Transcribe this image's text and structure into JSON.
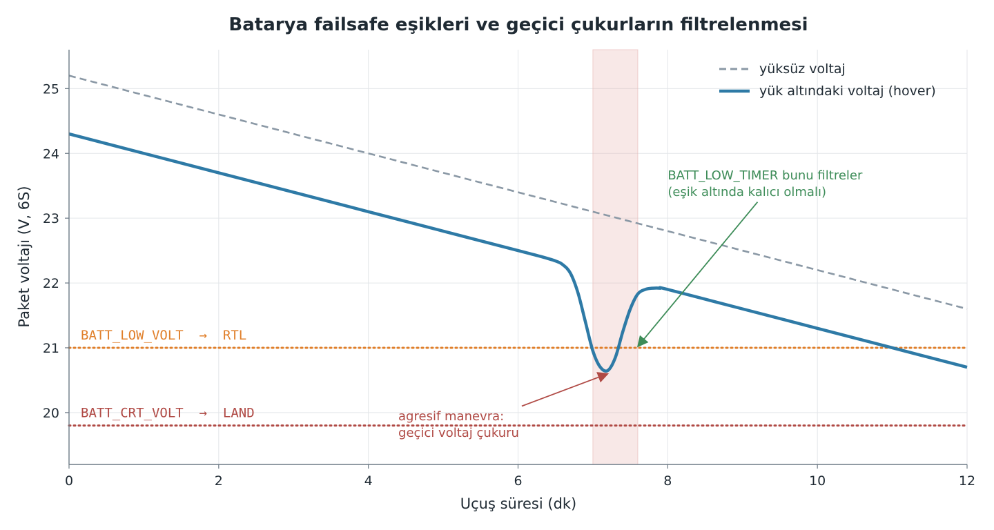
{
  "chart_data": {
    "type": "line",
    "title": "Batarya failsafe eşikleri ve geçici çukurların filtrelenmesi",
    "xlabel": "Uçuş süresi (dk)",
    "ylabel": "Paket voltajı (V, 6S)",
    "xlim": [
      0,
      12
    ],
    "ylim": [
      19.2,
      25.6
    ],
    "xticks": [
      0,
      2,
      4,
      6,
      8,
      10,
      12
    ],
    "yticks": [
      20,
      21,
      22,
      23,
      24,
      25
    ],
    "grid": true,
    "legend_position": "top-right",
    "series": [
      {
        "name": "yüksüz voltaj",
        "style": "dashed",
        "color": "#8a98a5",
        "x": [
          0,
          12
        ],
        "y": [
          25.2,
          21.6
        ]
      },
      {
        "name": "yük altındaki voltaj (hover)",
        "style": "solid",
        "color": "#2e7aa6",
        "x": [
          0,
          1,
          2,
          3,
          4,
          5,
          6,
          6.3,
          6.5,
          6.6,
          6.7,
          6.8,
          6.9,
          7.0,
          7.1,
          7.2,
          7.3,
          7.4,
          7.5,
          7.6,
          7.7,
          7.8,
          7.9,
          8.0,
          9,
          10,
          11,
          12
        ],
        "y": [
          24.3,
          24.0,
          23.7,
          23.4,
          23.1,
          22.8,
          22.5,
          22.41,
          22.34,
          22.28,
          22.15,
          21.85,
          21.4,
          20.95,
          20.7,
          20.65,
          20.85,
          21.25,
          21.6,
          21.83,
          21.9,
          21.92,
          21.92,
          21.9,
          21.6,
          21.3,
          21.0,
          20.7
        ]
      }
    ],
    "thresholds": [
      {
        "label": "BATT_LOW_VOLT  →  RTL",
        "value": 21.0,
        "color": "#e07f2a"
      },
      {
        "label": "BATT_CRT_VOLT  →  LAND",
        "value": 19.8,
        "color": "#b04a45"
      }
    ],
    "shaded_region": {
      "x": [
        7.0,
        7.6
      ],
      "color": "#e8b4b0"
    },
    "annotations": [
      {
        "lines": [
          "BATT_LOW_TIMER bunu filtreler",
          "(eşik altında kalıcı olmalı)"
        ],
        "color": "#3d8c58",
        "text_xy": [
          8.0,
          23.6
        ],
        "arrow_from": [
          9.2,
          23.25
        ],
        "arrow_to": [
          7.6,
          21.02
        ]
      },
      {
        "lines": [
          "agresif manevra:",
          "geçici voltaj çukuru"
        ],
        "color": "#b04a45",
        "text_xy": [
          4.4,
          19.88
        ],
        "arrow_from": [
          6.05,
          20.1
        ],
        "arrow_to": [
          7.2,
          20.6
        ]
      }
    ]
  }
}
